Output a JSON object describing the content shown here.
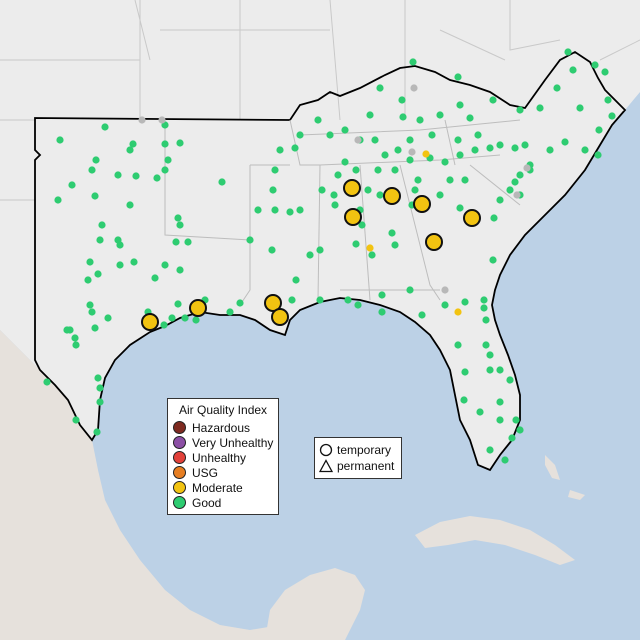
{
  "legend": {
    "title": "Air Quality Index",
    "categories": [
      {
        "label": "Hazardous",
        "color": "#7e2a20"
      },
      {
        "label": "Very Unhealthy",
        "color": "#8c4fa5"
      },
      {
        "label": "Unhealthy",
        "color": "#e2413a"
      },
      {
        "label": "USG",
        "color": "#e67e22"
      },
      {
        "label": "Moderate",
        "color": "#f2c311"
      },
      {
        "label": "Good",
        "color": "#2ecc71"
      }
    ]
  },
  "site_types": [
    {
      "label": "temporary",
      "shape": "circle-icon"
    },
    {
      "label": "permanent",
      "shape": "triangle-icon"
    }
  ],
  "colors": {
    "water": "#bcd1e6",
    "land": "#ededed",
    "unmonitored": "#b8b8b8"
  }
}
